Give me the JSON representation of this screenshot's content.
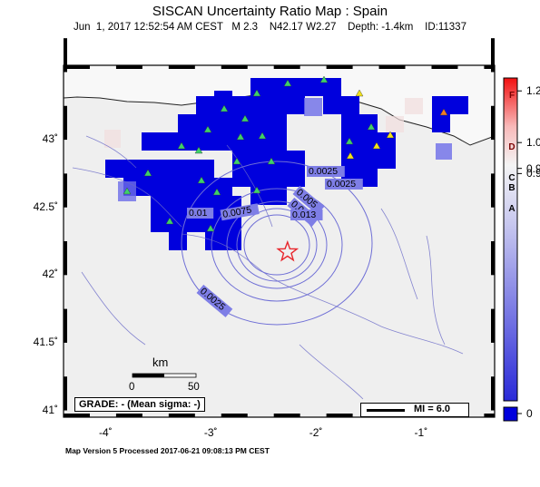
{
  "header": {
    "title": "SISCAN Uncertainty Ratio Map : Spain",
    "subtitle": "Jun  1, 2017 12:52:54 AM CEST   M 2.3    N42.17 W2.27    Depth: -1.4km    ID:11337"
  },
  "footer": {
    "text": "Map Version 5 Processed 2017-06-21 09:08:13 PM CEST"
  },
  "map": {
    "lat_labels": [
      "43˚",
      "42.5˚",
      "42˚",
      "41.5˚",
      "41˚"
    ],
    "lon_labels": [
      "-4˚",
      "-3˚",
      "-2˚",
      "-1˚"
    ],
    "lat_values": [
      43,
      42.5,
      42,
      41.5,
      41
    ],
    "lon_values": [
      -4,
      -3,
      -2,
      -1
    ],
    "lon_range": [
      -4.4,
      -0.3
    ],
    "lat_range": [
      40.95,
      43.55
    ],
    "epicenter": {
      "lat": 42.17,
      "lon": -2.27
    },
    "contour_labels": [
      "0.0025",
      "0.0025",
      "0.005",
      "0.005",
      "0.0075",
      "0.01",
      "0.013",
      "0.0025"
    ],
    "grade_text": "GRADE: - (Mean sigma: -)",
    "mi_label": "MI = 6.0",
    "scale": {
      "title": "km",
      "ticks": [
        "0",
        "50"
      ]
    },
    "colors": {
      "land": "#efefef",
      "low_ratio": "#0000dd",
      "contour": "#6f6fd6",
      "epicenter": "#e8262c",
      "station_green": "#3ecf6a",
      "station_yellow": "#f2e21a",
      "station_orange": "#f07b25"
    }
  },
  "colorbar": {
    "value_labels": [
      "1.2",
      "1.0",
      "0.9",
      "0.9",
      "0"
    ],
    "value_positions": [
      1.2,
      1.0,
      0.9,
      0.88,
      0
    ],
    "letter_labels": [
      "F",
      "D",
      "C",
      "B",
      "A"
    ],
    "letter_positions": [
      1.18,
      0.98,
      0.86,
      0.82,
      0.74
    ]
  }
}
